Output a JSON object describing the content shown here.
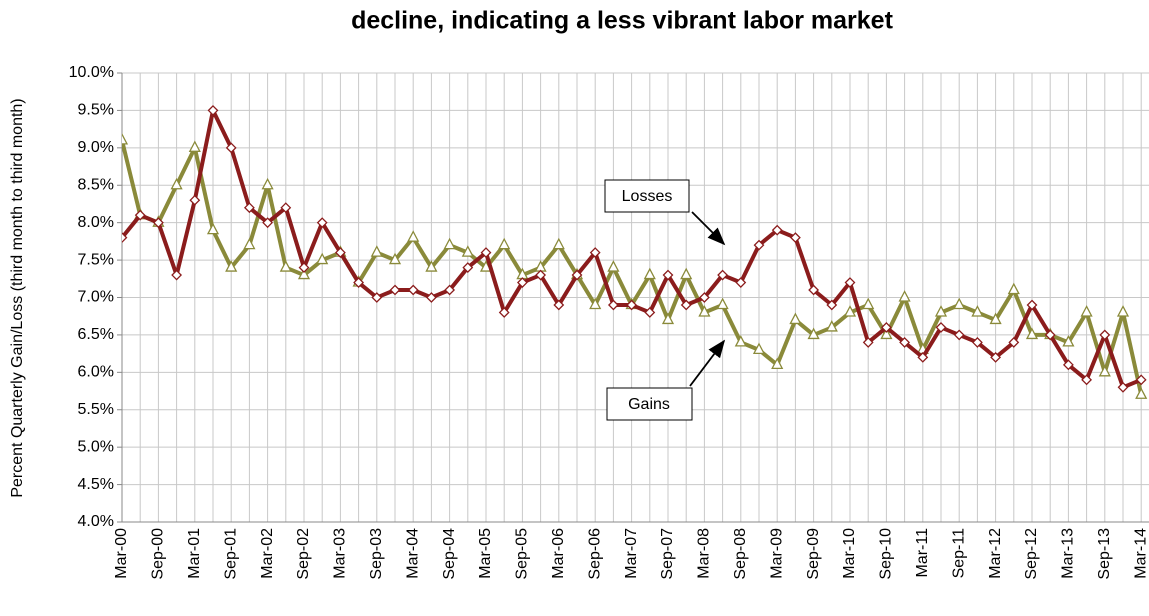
{
  "chart_data": {
    "type": "line",
    "title": "decline, indicating a less vibrant labor market",
    "y_label": "Percent Quarterly Gain/Loss (third month to third month)",
    "categories": [
      "Mar-00",
      null,
      "Sep-00",
      null,
      "Mar-01",
      null,
      "Sep-01",
      null,
      "Mar-02",
      null,
      "Sep-02",
      null,
      "Mar-03",
      null,
      "Sep-03",
      null,
      "Mar-04",
      null,
      "Sep-04",
      null,
      "Mar-05",
      null,
      "Sep-05",
      null,
      "Mar-06",
      null,
      "Sep-06",
      null,
      "Mar-07",
      null,
      "Sep-07",
      null,
      "Mar-08",
      null,
      "Sep-08",
      null,
      "Mar-09",
      null,
      "Sep-09",
      null,
      "Mar-10",
      null,
      "Sep-10",
      null,
      "Mar-11",
      null,
      "Sep-11",
      null,
      "Mar-12",
      null,
      "Sep-12",
      null,
      "Mar-13",
      null,
      "Sep-13",
      null,
      "Mar-14"
    ],
    "series": [
      {
        "name": "Losses",
        "color": "#8b1c1c",
        "marker": "diamond",
        "values": [
          7.8,
          8.1,
          8.0,
          7.3,
          8.3,
          9.5,
          9.0,
          8.2,
          8.0,
          8.2,
          7.4,
          8.0,
          7.6,
          7.2,
          7.0,
          7.1,
          7.1,
          7.0,
          7.1,
          7.4,
          7.6,
          6.8,
          7.2,
          7.3,
          6.9,
          7.3,
          7.6,
          6.9,
          6.9,
          6.8,
          7.3,
          6.9,
          7.0,
          7.3,
          7.2,
          7.7,
          7.9,
          7.8,
          7.1,
          6.9,
          7.2,
          6.4,
          6.6,
          6.4,
          6.2,
          6.6,
          6.5,
          6.4,
          6.2,
          6.4,
          6.9,
          6.5,
          6.1,
          5.9,
          6.5,
          5.8,
          5.9
        ]
      },
      {
        "name": "Gains",
        "color": "#8a8a3a",
        "marker": "triangle",
        "values": [
          9.1,
          8.1,
          8.0,
          8.5,
          9.0,
          7.9,
          7.4,
          7.7,
          8.5,
          7.4,
          7.3,
          7.5,
          7.6,
          7.2,
          7.6,
          7.5,
          7.8,
          7.4,
          7.7,
          7.6,
          7.4,
          7.7,
          7.3,
          7.4,
          7.7,
          7.3,
          6.9,
          7.4,
          6.9,
          7.3,
          6.7,
          7.3,
          6.8,
          6.9,
          6.4,
          6.3,
          6.1,
          6.7,
          6.5,
          6.6,
          6.8,
          6.9,
          6.5,
          7.0,
          6.3,
          6.8,
          6.9,
          6.8,
          6.7,
          7.1,
          6.5,
          6.5,
          6.4,
          6.8,
          6.0,
          6.8,
          5.7
        ]
      }
    ],
    "ylim": [
      4.0,
      10.0
    ],
    "yticks": [
      {
        "value": 4.0,
        "label": "4.0%"
      },
      {
        "value": 4.5,
        "label": "4.5%"
      },
      {
        "value": 5.0,
        "label": "5.0%"
      },
      {
        "value": 5.5,
        "label": "5.5%"
      },
      {
        "value": 6.0,
        "label": "6.0%"
      },
      {
        "value": 6.5,
        "label": "6.5%"
      },
      {
        "value": 7.0,
        "label": "7.0%"
      },
      {
        "value": 7.5,
        "label": "7.5%"
      },
      {
        "value": 8.0,
        "label": "8.0%"
      },
      {
        "value": 8.5,
        "label": "8.5%"
      },
      {
        "value": 9.0,
        "label": "9.0%"
      },
      {
        "value": 9.5,
        "label": "9.5%"
      },
      {
        "value": 10.0,
        "label": "10.0%"
      }
    ],
    "grid": true
  }
}
